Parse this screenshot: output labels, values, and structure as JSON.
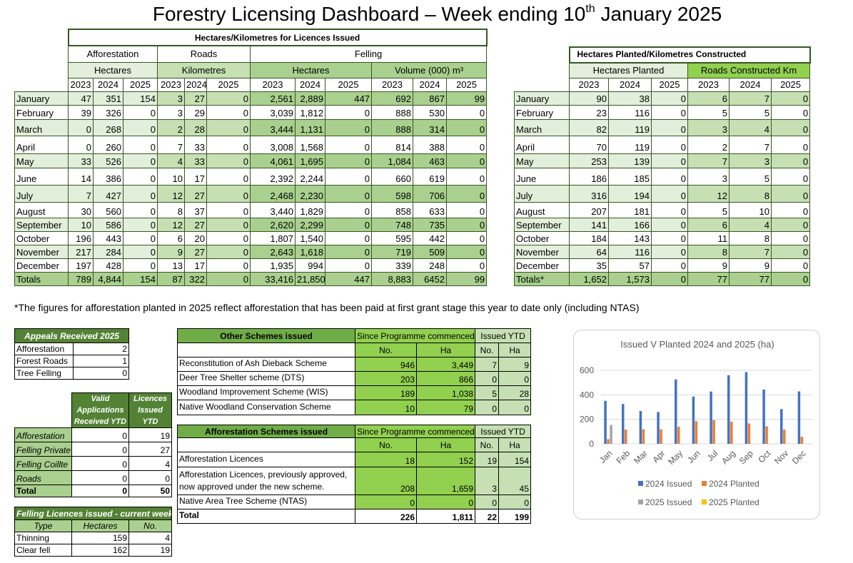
{
  "title": {
    "prefix": "Forestry Licensing Dashboard – Week ending 10",
    "sup": "th",
    "suffix": " January 2025"
  },
  "licences": {
    "heading": "Hectares/Kilometres for Licences Issued",
    "groups": [
      "Afforestation",
      "Roads",
      "Felling"
    ],
    "units": [
      "Hectares",
      "Kilometres",
      "Hectares",
      "Volume (000) m³"
    ],
    "years": [
      "2023",
      "2024",
      "2025",
      "2023",
      "2024",
      "2025",
      "2023",
      "2024",
      "2025",
      "2023",
      "2024",
      "2025"
    ],
    "rows": [
      {
        "label": "January",
        "values": [
          "47",
          "351",
          "154",
          "3",
          "27",
          "0",
          "2,561",
          "2,889",
          "447",
          "692",
          "867",
          "99"
        ]
      },
      {
        "label": "February",
        "values": [
          "39",
          "326",
          "0",
          "3",
          "29",
          "0",
          "3,039",
          "1,812",
          "0",
          "888",
          "530",
          "0"
        ]
      },
      {
        "label": "March",
        "values": [
          "0",
          "268",
          "0",
          "2",
          "28",
          "0",
          "3,444",
          "1,131",
          "0",
          "888",
          "314",
          "0"
        ]
      },
      {
        "label": "April",
        "values": [
          "0",
          "260",
          "0",
          "7",
          "33",
          "0",
          "3,008",
          "1,568",
          "0",
          "814",
          "388",
          "0"
        ]
      },
      {
        "label": "May",
        "values": [
          "33",
          "526",
          "0",
          "4",
          "33",
          "0",
          "4,061",
          "1,695",
          "0",
          "1,084",
          "463",
          "0"
        ]
      },
      {
        "label": "June",
        "values": [
          "14",
          "386",
          "0",
          "10",
          "17",
          "0",
          "2,392",
          "2,244",
          "0",
          "660",
          "619",
          "0"
        ]
      },
      {
        "label": "July",
        "values": [
          "7",
          "427",
          "0",
          "12",
          "27",
          "0",
          "2,468",
          "2,230",
          "0",
          "598",
          "706",
          "0"
        ]
      },
      {
        "label": "August",
        "values": [
          "30",
          "560",
          "0",
          "8",
          "37",
          "0",
          "3,440",
          "1,829",
          "0",
          "858",
          "633",
          "0"
        ]
      },
      {
        "label": "September",
        "values": [
          "10",
          "586",
          "0",
          "12",
          "27",
          "0",
          "2,620",
          "2,299",
          "0",
          "748",
          "735",
          "0"
        ]
      },
      {
        "label": "October",
        "values": [
          "196",
          "443",
          "0",
          "6",
          "20",
          "0",
          "1,807",
          "1,540",
          "0",
          "595",
          "442",
          "0"
        ]
      },
      {
        "label": "November",
        "values": [
          "217",
          "284",
          "0",
          "9",
          "27",
          "0",
          "2,643",
          "1,618",
          "0",
          "719",
          "509",
          "0"
        ]
      },
      {
        "label": "December",
        "values": [
          "197",
          "428",
          "0",
          "13",
          "17",
          "0",
          "1,935",
          "994",
          "0",
          "339",
          "248",
          "0"
        ]
      },
      {
        "label": "Totals",
        "values": [
          "789",
          "4,844",
          "154",
          "87",
          "322",
          "0",
          "33,416",
          "21,850",
          "447",
          "8,883",
          "6452",
          "99"
        ]
      }
    ]
  },
  "planted": {
    "heading": "Hectares Planted/Kilometres Constructed",
    "units": [
      "Hectares Planted",
      "Roads Constructed Km"
    ],
    "years": [
      "2023",
      "2024",
      "2025",
      "2023",
      "2024",
      "2025"
    ],
    "rows": [
      {
        "label": "January",
        "values": [
          "90",
          "38",
          "0",
          "6",
          "7",
          "0"
        ]
      },
      {
        "label": "February",
        "values": [
          "23",
          "116",
          "0",
          "5",
          "5",
          "0"
        ]
      },
      {
        "label": "March",
        "values": [
          "82",
          "119",
          "0",
          "3",
          "4",
          "0"
        ]
      },
      {
        "label": "April",
        "values": [
          "70",
          "119",
          "0",
          "2",
          "7",
          "0"
        ]
      },
      {
        "label": "May",
        "values": [
          "253",
          "139",
          "0",
          "7",
          "3",
          "0"
        ]
      },
      {
        "label": "June",
        "values": [
          "186",
          "185",
          "0",
          "3",
          "5",
          "0"
        ]
      },
      {
        "label": "July",
        "values": [
          "316",
          "194",
          "0",
          "12",
          "8",
          "0"
        ]
      },
      {
        "label": "August",
        "values": [
          "207",
          "181",
          "0",
          "5",
          "10",
          "0"
        ]
      },
      {
        "label": "September",
        "values": [
          "141",
          "166",
          "0",
          "6",
          "4",
          "0"
        ]
      },
      {
        "label": "October",
        "values": [
          "184",
          "143",
          "0",
          "11",
          "8",
          "0"
        ]
      },
      {
        "label": "November",
        "values": [
          "64",
          "116",
          "0",
          "8",
          "7",
          "0"
        ]
      },
      {
        "label": "December",
        "values": [
          "35",
          "57",
          "0",
          "9",
          "9",
          "0"
        ]
      },
      {
        "label": "Totals*",
        "values": [
          "1,652",
          "1,573",
          "0",
          "77",
          "77",
          "0"
        ]
      }
    ]
  },
  "footnote": "*The figures for afforestation planted in 2025 reflect afforestation that has been paid at first grant stage this year to date only (including NTAS)",
  "appeals": {
    "heading": "Appeals Received 2025",
    "rows": [
      {
        "label": "Afforestation",
        "value": "2"
      },
      {
        "label": "Forest Roads",
        "value": "1"
      },
      {
        "label": "Tree Felling",
        "value": "0"
      }
    ]
  },
  "applications": {
    "headers": [
      "Valid Applications Received YTD",
      "Licences Issued YTD"
    ],
    "rows": [
      {
        "label": "Afforestation",
        "values": [
          "0",
          "19"
        ]
      },
      {
        "label": "Felling Private",
        "values": [
          "0",
          "27"
        ]
      },
      {
        "label": "Felling Coillte",
        "values": [
          "0",
          "4"
        ]
      },
      {
        "label": "Roads",
        "values": [
          "0",
          "0"
        ]
      },
      {
        "label": "Total",
        "values": [
          "0",
          "50"
        ]
      }
    ]
  },
  "felling_week": {
    "heading": "Felling Licences issued - current week",
    "headers": [
      "Type",
      "Hectares",
      "No."
    ],
    "rows": [
      {
        "label": "Thinning",
        "values": [
          "159",
          "4"
        ]
      },
      {
        "label": "Clear fell",
        "values": [
          "162",
          "19"
        ]
      }
    ]
  },
  "other_schemes": {
    "heading": "Other Schemes issued",
    "since": "Since Programme commenced",
    "ytd": "Issued YTD",
    "sub": [
      "No.",
      "Ha",
      "No.",
      "Ha"
    ],
    "rows": [
      {
        "label": "Reconstitution of Ash Dieback Scheme",
        "values": [
          "946",
          "3,449",
          "7",
          "9"
        ]
      },
      {
        "label": "Deer Tree Shelter scheme (DTS)",
        "values": [
          "203",
          "866",
          "0",
          "0"
        ]
      },
      {
        "label": "Woodland Improvement Scheme (WIS)",
        "values": [
          "189",
          "1,038",
          "5",
          "28"
        ]
      },
      {
        "label": "Native Woodland Conservation Scheme",
        "values": [
          "10",
          "79",
          "0",
          "0"
        ]
      }
    ]
  },
  "aff_schemes": {
    "heading": "Afforestation Schemes issued",
    "since": "Since Programme commenced",
    "ytd": "Issued YTD",
    "sub": [
      "No.",
      "Ha",
      "No.",
      "Ha"
    ],
    "rows": [
      {
        "label": "Afforestation Licences",
        "values": [
          "18",
          "152",
          "19",
          "154"
        ]
      },
      {
        "label": "Afforestation Licences, previously approved, now approved under the new scheme.",
        "values": [
          "208",
          "1,659",
          "3",
          "45"
        ]
      },
      {
        "label": "Native Area Tree Scheme (NTAS)",
        "values": [
          "0",
          "0",
          "0",
          "0"
        ]
      },
      {
        "label": "Total",
        "values": [
          "226",
          "1,811",
          "22",
          "199"
        ]
      }
    ]
  },
  "chart_data": {
    "type": "bar",
    "title": "Issued V Planted 2024 and 2025 (ha)",
    "categories": [
      "Jan",
      "Feb",
      "Mar",
      "Apr",
      "May",
      "Jun",
      "Jul",
      "Aug",
      "Sep",
      "Oct",
      "Nov",
      "Dec"
    ],
    "ylim": [
      0,
      600
    ],
    "yticks": [
      "0",
      "200",
      "400",
      "600"
    ],
    "grid": true,
    "legend": "bottom",
    "series": [
      {
        "name": "2024 Issued",
        "color": "#4472c4",
        "values": [
          351,
          326,
          268,
          260,
          526,
          386,
          427,
          560,
          586,
          443,
          284,
          428
        ]
      },
      {
        "name": "2024 Planted",
        "color": "#ed7d31",
        "values": [
          38,
          116,
          119,
          119,
          139,
          185,
          194,
          181,
          166,
          143,
          116,
          57
        ]
      },
      {
        "name": "2025 Issued",
        "color": "#a5a5a5",
        "values": [
          154,
          0,
          0,
          0,
          0,
          0,
          0,
          0,
          0,
          0,
          0,
          0
        ]
      },
      {
        "name": "2025 Planted",
        "color": "#ffc000",
        "values": [
          0,
          0,
          0,
          0,
          0,
          0,
          0,
          0,
          0,
          0,
          0,
          0
        ]
      }
    ]
  },
  "colors": {
    "light": "#e2efda",
    "medium": "#c6e0b4",
    "dark": "#a9d08e",
    "bright": "#92d050",
    "header": "#548235"
  }
}
